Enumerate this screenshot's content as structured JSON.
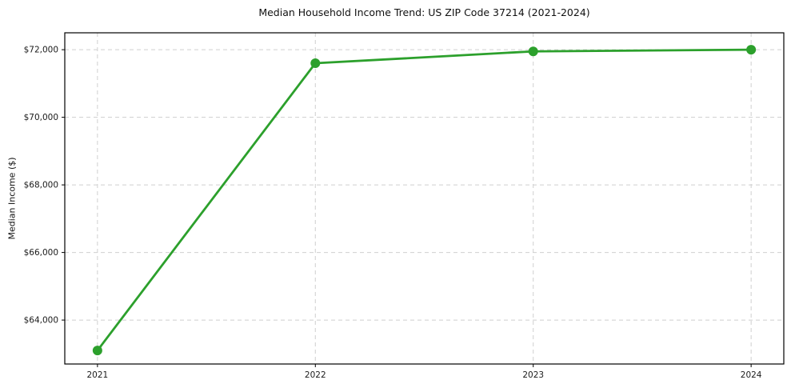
{
  "figure": {
    "background": "#ffffff"
  },
  "chart_data": {
    "type": "line",
    "title": "Median Household Income Trend: US ZIP Code 37214 (2021-2024)",
    "xlabel": "",
    "ylabel": "Median Income ($)",
    "x": [
      2021,
      2022,
      2023,
      2024
    ],
    "x_tick_labels": [
      "2021",
      "2022",
      "2023",
      "2024"
    ],
    "series": [
      {
        "name": "median-household-income",
        "values": [
          63100,
          71600,
          71950,
          72000
        ],
        "color": "#2ca02c",
        "marker": "circle",
        "line_width": 2.8,
        "marker_radius": 6
      }
    ],
    "y_ticks": [
      64000,
      66000,
      68000,
      70000,
      72000
    ],
    "y_tick_labels": [
      "$64,000",
      "$66,000",
      "$68,000",
      "$70,000",
      "$72,000"
    ],
    "ylim": [
      62700,
      72500
    ],
    "xlim": [
      2020.85,
      2024.15
    ],
    "grid": "both",
    "grid_style": "dashed",
    "grid_color": "#cfcfcf",
    "frame_color": "#000000",
    "tick_label_color": "#1a1a1a",
    "legend": "none"
  }
}
